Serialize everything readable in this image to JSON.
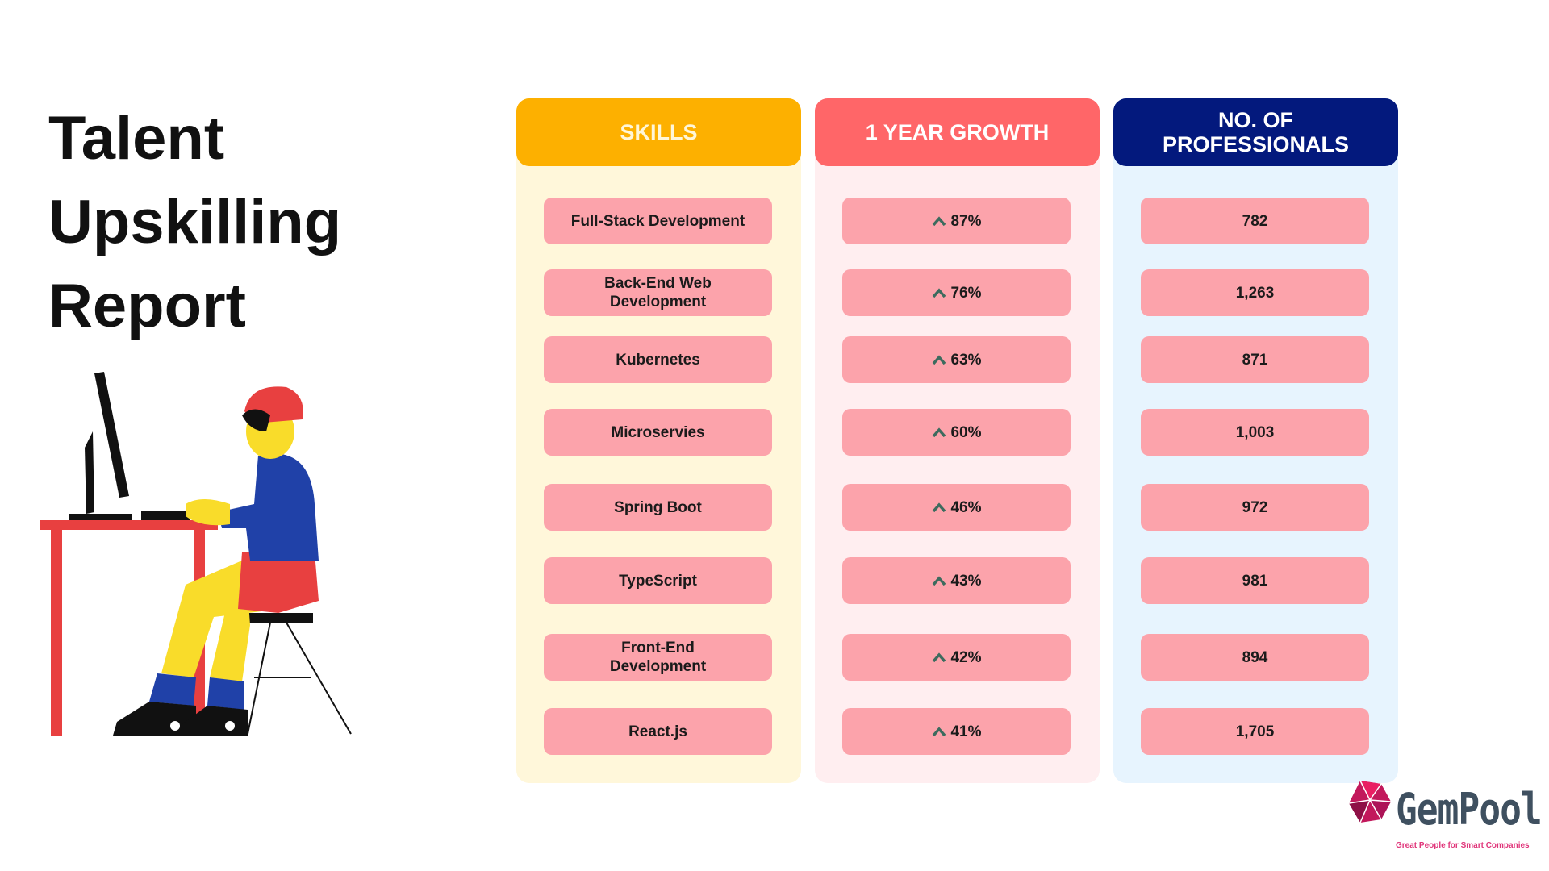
{
  "title_lines": [
    "Talent",
    "Upskilling",
    "Report"
  ],
  "columns": {
    "skills": {
      "header": "SKILLS",
      "color": "#fdb000",
      "bg": "#fff7da"
    },
    "growth": {
      "header": "1 YEAR GROWTH",
      "color": "#ff6668",
      "bg": "#ffeef0"
    },
    "professionals": {
      "header_line1": "NO. OF",
      "header_line2": "PROFESSIONALS",
      "color": "#03197d",
      "bg": "#e7f4fe"
    }
  },
  "pill_color": "#fca3ab",
  "arrow_icon": "chevron-up-icon",
  "rows": [
    {
      "skill": "Full-Stack Development",
      "growth": "87%",
      "professionals": "782"
    },
    {
      "skill": "Back-End Web Development",
      "growth": "76%",
      "professionals": "1,263"
    },
    {
      "skill": "Kubernetes",
      "growth": "63%",
      "professionals": "871"
    },
    {
      "skill": "Microservies",
      "growth": "60%",
      "professionals": "1,003"
    },
    {
      "skill": "Spring Boot",
      "growth": "46%",
      "professionals": "972"
    },
    {
      "skill": "TypeScript",
      "growth": "43%",
      "professionals": "981"
    },
    {
      "skill": "Front-End Development",
      "growth": "42%",
      "professionals": "894"
    },
    {
      "skill": "React.js",
      "growth": "41%",
      "professionals": "1,705"
    }
  ],
  "logo": {
    "name": "GemPool",
    "tagline": "Great People for Smart Companies"
  }
}
